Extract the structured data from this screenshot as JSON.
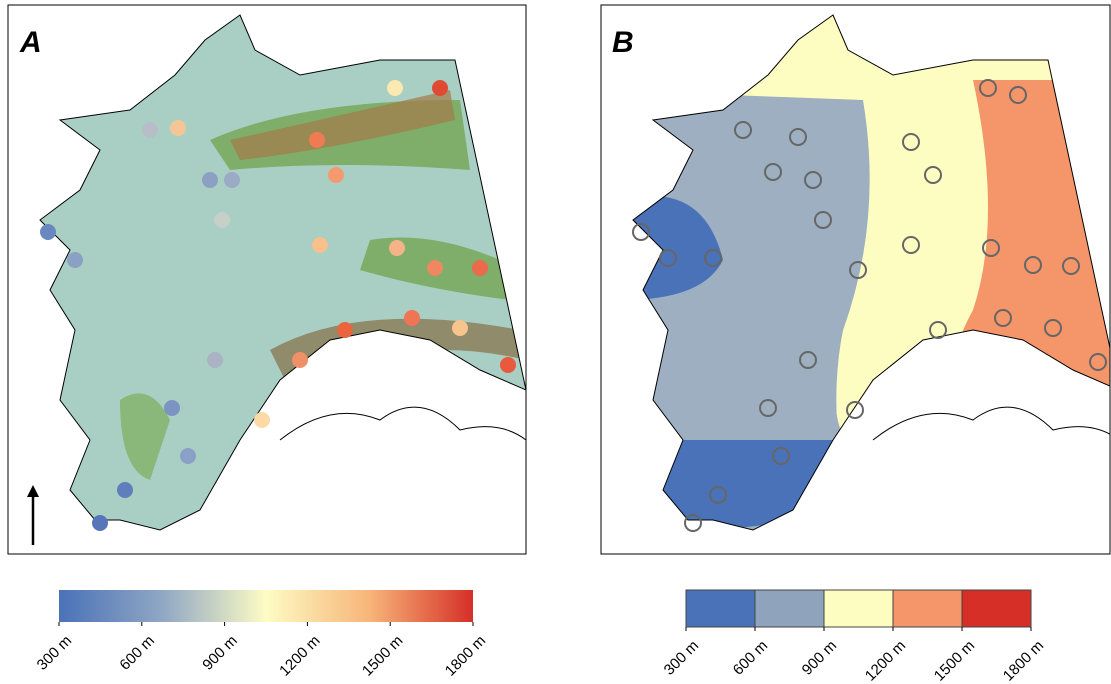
{
  "panels": [
    {
      "label": "A",
      "colorbar": {
        "style": "continuous",
        "range": [
          300,
          1800
        ],
        "colors": [
          "#4a72b8",
          "#90a7c4",
          "#fdfcc4",
          "#f7b579",
          "#d62f27"
        ],
        "ticks": [
          {
            "value": 300,
            "label": "300 m"
          },
          {
            "value": 600,
            "label": "600 m"
          },
          {
            "value": 900,
            "label": "900 m"
          },
          {
            "value": 1200,
            "label": "1200 m"
          },
          {
            "value": 1500,
            "label": "1500 m"
          },
          {
            "value": 1800,
            "label": "1800 m"
          }
        ]
      }
    },
    {
      "label": "B",
      "colorbar": {
        "style": "discrete",
        "range": [
          300,
          1800
        ],
        "colors": [
          "#4a72b8",
          "#8fa3bd",
          "#fefdc1",
          "#f4956a",
          "#d62f27"
        ],
        "ticks": [
          {
            "value": 300,
            "label": "300 m"
          },
          {
            "value": 600,
            "label": "600 m"
          },
          {
            "value": 900,
            "label": "900 m"
          },
          {
            "value": 1200,
            "label": "1200 m"
          },
          {
            "value": 1500,
            "label": "1500 m"
          },
          {
            "value": 1800,
            "label": "1800 m"
          }
        ]
      }
    }
  ]
}
